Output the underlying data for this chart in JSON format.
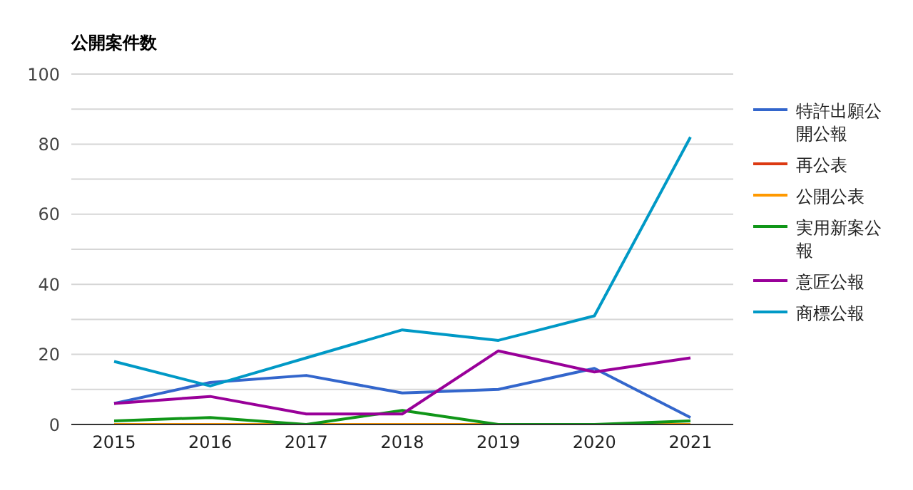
{
  "chart_data": {
    "type": "line",
    "title": "公開案件数",
    "categories": [
      "2015",
      "2016",
      "2017",
      "2018",
      "2019",
      "2020",
      "2021"
    ],
    "series": [
      {
        "name": "特許出願公開公報",
        "color": "#3366cc",
        "values": [
          6,
          12,
          14,
          9,
          10,
          16,
          2
        ]
      },
      {
        "name": "再公表",
        "color": "#dc3912",
        "values": [
          null,
          null,
          null,
          null,
          null,
          null,
          null
        ]
      },
      {
        "name": "公開公表",
        "color": "#ff9900",
        "values": [
          0,
          0,
          0,
          0,
          0,
          0,
          0
        ]
      },
      {
        "name": "実用新案公報",
        "color": "#109618",
        "values": [
          1,
          2,
          0,
          4,
          0,
          0,
          1
        ]
      },
      {
        "name": "意匠公報",
        "color": "#990099",
        "values": [
          6,
          8,
          3,
          3,
          21,
          15,
          19
        ]
      },
      {
        "name": "商標公報",
        "color": "#0099c6",
        "values": [
          18,
          11,
          19,
          27,
          24,
          31,
          82
        ]
      }
    ],
    "ylim": [
      0,
      100
    ],
    "yticks": [
      0,
      {
        "value": 10,
        "label": null
      },
      20,
      {
        "value": 30,
        "label": null
      },
      40,
      {
        "value": 50,
        "label": null
      },
      60,
      {
        "value": 70,
        "label": null
      },
      80,
      {
        "value": 90,
        "label": null
      },
      100
    ],
    "grid": "y",
    "legend": "right",
    "marker": "none",
    "line_style": "solid"
  }
}
